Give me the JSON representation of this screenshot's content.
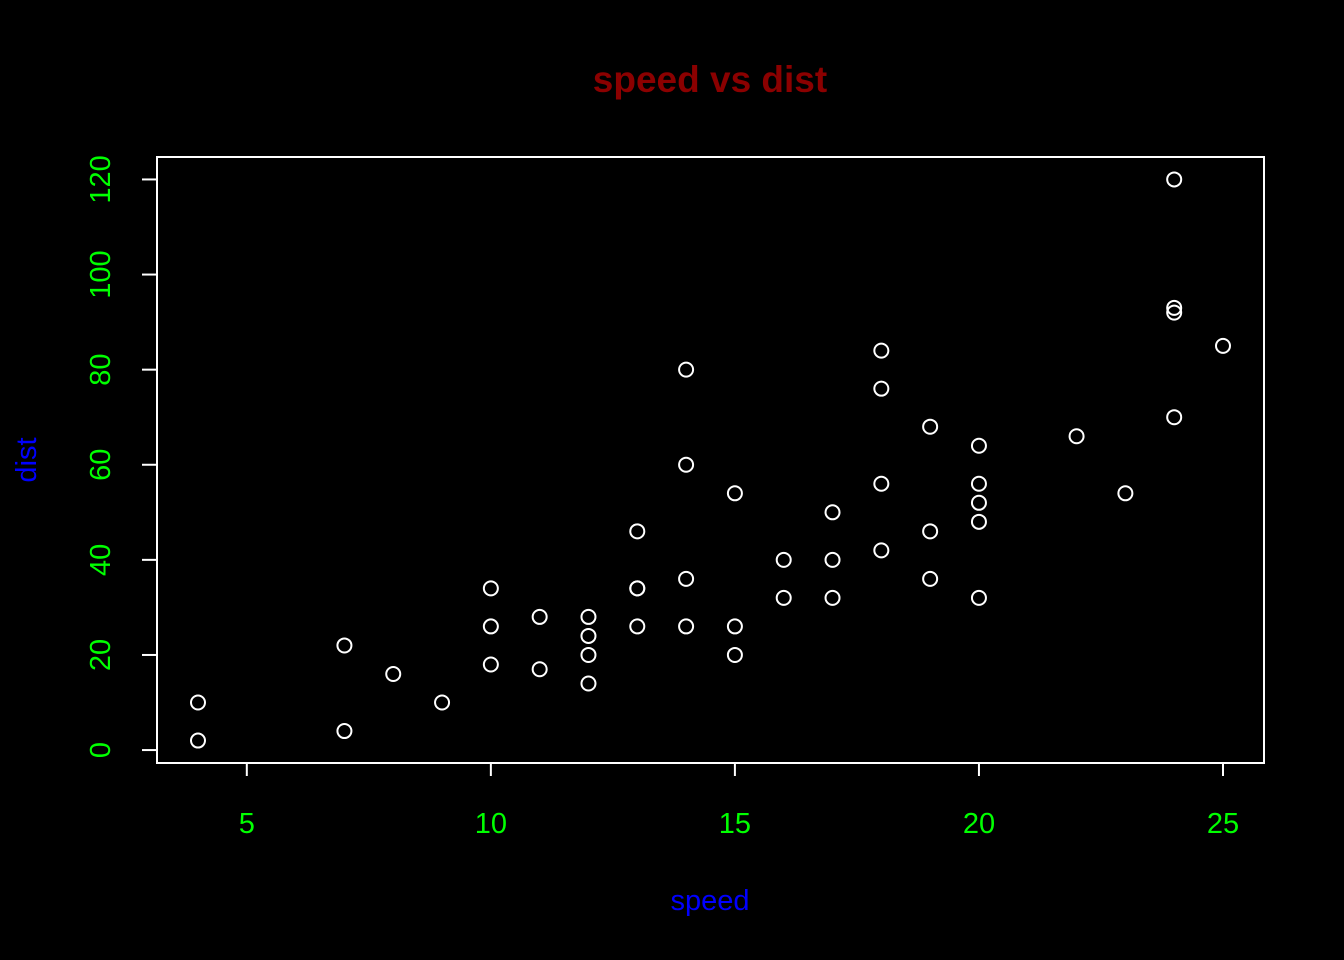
{
  "colors": {
    "background": "#000000",
    "title": "#8B0000",
    "axis_title": "#0000FF",
    "tick_label": "#00FF00",
    "frame": "#FFFFFF",
    "points": "#FFFFFF"
  },
  "chart_data": {
    "type": "scatter",
    "title": "speed vs dist",
    "xlabel": "speed",
    "ylabel": "dist",
    "xlim": [
      3.16,
      25.84
    ],
    "ylim": [
      -2.72,
      124.72
    ],
    "xticks": [
      5,
      10,
      15,
      20,
      25
    ],
    "yticks": [
      0,
      20,
      40,
      60,
      80,
      100,
      120
    ],
    "marker": "open-circle",
    "grid": false,
    "legend": "none",
    "x": [
      4,
      4,
      7,
      7,
      8,
      9,
      10,
      10,
      10,
      11,
      11,
      12,
      12,
      12,
      12,
      13,
      13,
      13,
      13,
      14,
      14,
      14,
      14,
      15,
      15,
      15,
      16,
      16,
      17,
      17,
      17,
      18,
      18,
      18,
      18,
      19,
      19,
      19,
      20,
      20,
      20,
      20,
      20,
      22,
      23,
      24,
      24,
      24,
      24,
      25
    ],
    "y": [
      2,
      10,
      4,
      22,
      16,
      10,
      18,
      26,
      34,
      17,
      28,
      14,
      20,
      24,
      28,
      26,
      34,
      34,
      46,
      26,
      36,
      60,
      80,
      20,
      26,
      54,
      32,
      40,
      32,
      40,
      50,
      42,
      56,
      76,
      84,
      36,
      46,
      68,
      32,
      48,
      52,
      56,
      64,
      66,
      54,
      70,
      92,
      93,
      120,
      85
    ]
  }
}
